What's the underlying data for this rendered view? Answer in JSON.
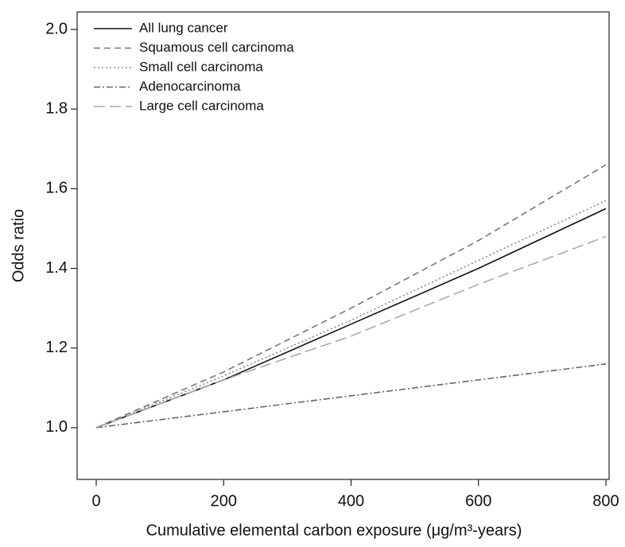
{
  "chart_data": {
    "type": "line",
    "xlabel": "Cumulative elemental carbon exposure (μg/m³-years)",
    "ylabel": "Odds ratio",
    "x": [
      0,
      200,
      400,
      600,
      800
    ],
    "series": [
      {
        "name": "All lung cancer",
        "color": "#111111",
        "dash": "none",
        "values": [
          1.0,
          1.12,
          1.26,
          1.4,
          1.55
        ]
      },
      {
        "name": "Squamous cell carcinoma",
        "color": "#777777",
        "dash": "8,5",
        "values": [
          1.0,
          1.14,
          1.3,
          1.47,
          1.66
        ]
      },
      {
        "name": "Small cell carcinoma",
        "color": "#888888",
        "dash": "2,3",
        "values": [
          1.0,
          1.13,
          1.27,
          1.42,
          1.57
        ]
      },
      {
        "name": "Adenocarcinoma",
        "color": "#666666",
        "dash": "8,3,2,3",
        "values": [
          1.0,
          1.04,
          1.08,
          1.12,
          1.16
        ]
      },
      {
        "name": "Large cell carcinoma",
        "color": "#aaaaaa",
        "dash": "14,6",
        "values": [
          1.0,
          1.12,
          1.23,
          1.36,
          1.48
        ]
      }
    ],
    "xlim": [
      -30,
      805
    ],
    "ylim": [
      0.87,
      2.044
    ],
    "xticks": [
      0,
      200,
      400,
      600,
      800
    ],
    "yticks": [
      {
        "value": 1.0,
        "label": "1.0"
      },
      1.2,
      1.4,
      1.6,
      1.8,
      {
        "value": 2.0,
        "label": "2.0"
      }
    ],
    "legend": "top-left"
  }
}
